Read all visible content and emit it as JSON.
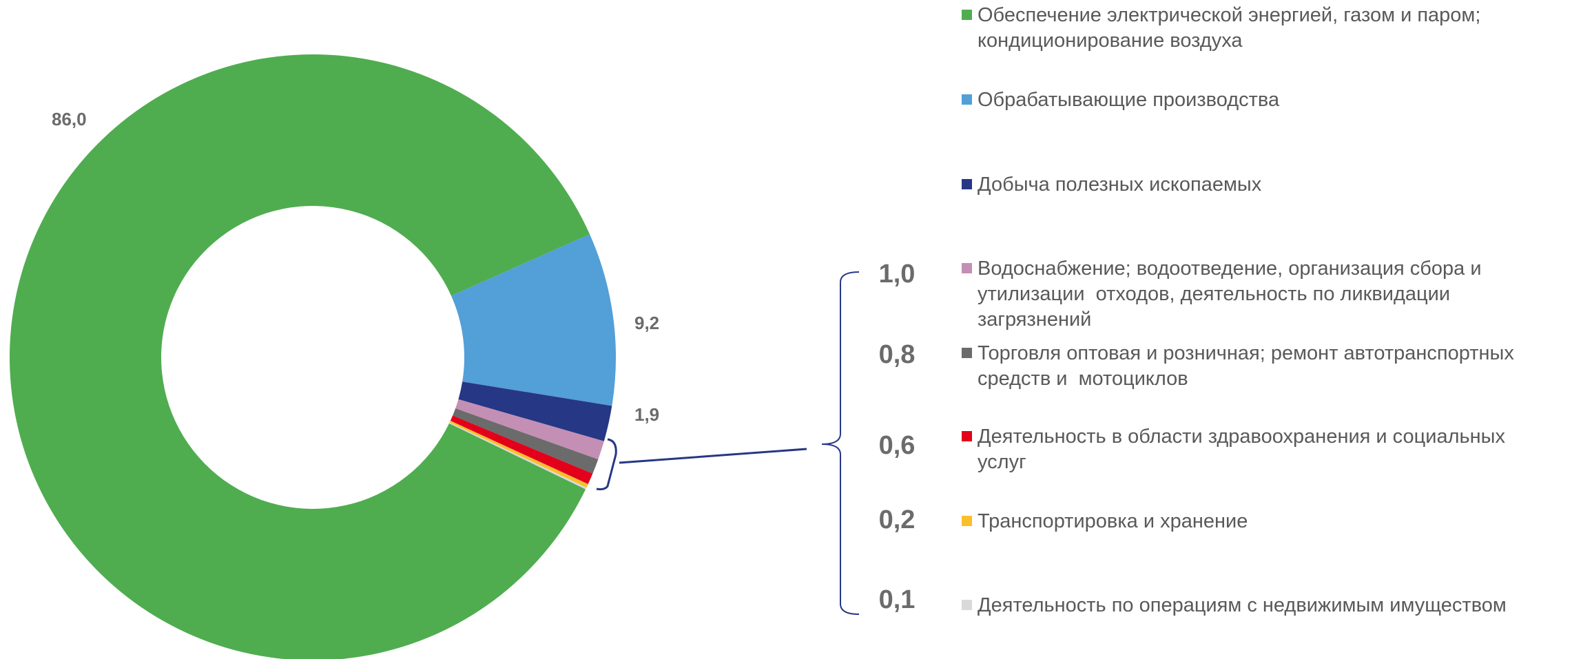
{
  "chart_data": {
    "type": "donut",
    "categories": [
      "Обеспечение электрической энергией, газом и паром;\nкондиционирование воздуха",
      "Обрабатывающие производства",
      "Добыча полезных ископаемых",
      "Водоснабжение; водоотведение, организация сбора и\nутилизации  отходов, деятельность по ликвидации\nзагрязнений",
      "Торговля оптовая и розничная; ремонт автотранспортных\nсредств и  мотоциклов",
      "Деятельность в области здравоохранения и социальных\nуслуг",
      "Транспортировка и хранение",
      "Деятельность по операциям с недвижимым имуществом"
    ],
    "values": [
      86.0,
      9.2,
      1.9,
      1.0,
      0.8,
      0.6,
      0.2,
      0.1
    ],
    "value_labels": [
      "86,0",
      "9,2",
      "1,9",
      "1,0",
      "0,8",
      "0,6",
      "0,2",
      "0,1"
    ],
    "colors": [
      "#4fad4f",
      "#539fd8",
      "#263785",
      "#c48fb4",
      "#6b6b6b",
      "#e3001b",
      "#fbbf2c",
      "#d9d9d9"
    ]
  }
}
